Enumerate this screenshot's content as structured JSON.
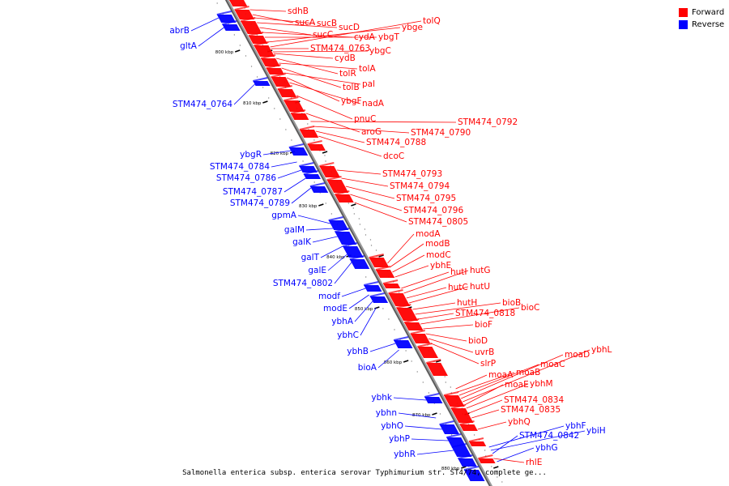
{
  "caption": "Salmonella enterica subsp. enterica serovar Typhimurium str. ST4/74, complete ge...",
  "colors": {
    "forward": "#ff0000",
    "reverse": "#0000ff"
  },
  "legend": [
    {
      "label": "Forward",
      "color": "#ff0000"
    },
    {
      "label": "Reverse",
      "color": "#0000ff"
    }
  ],
  "ticks": [
    "800 kbp",
    "810 kbp",
    "820 kbp",
    "830 kbp",
    "840 kbp",
    "850 kbp",
    "860 kbp",
    "870 kbp",
    "880 kbp"
  ],
  "forward_genes": [
    "sdhB",
    "sucA",
    "sucB",
    "sucD",
    "sucC",
    "cydA",
    "ybgT",
    "ybge",
    "tolQ",
    "STM474_0763",
    "ybgC",
    "cydB",
    "tolR",
    "tolA",
    "tolB",
    "pal",
    "ybgF",
    "nadA",
    "pnuC",
    "aroG",
    "STM474_0792",
    "STM474_0790",
    "STM474_0788",
    "dcoC",
    "STM474_0793",
    "STM474_0794",
    "STM474_0795",
    "STM474_0796",
    "STM474_0805",
    "modA",
    "modB",
    "modC",
    "ybhE",
    "hutI",
    "hutG",
    "hutC",
    "hutU",
    "hutH",
    "bioB",
    "STM474_0818",
    "bioC",
    "bioF",
    "bioD",
    "uvrB",
    "slrP",
    "moaA",
    "moaB",
    "moaC",
    "moaD",
    "ybhL",
    "moaE",
    "ybhM",
    "STM474_0834",
    "STM474_0835",
    "ybhQ",
    "rhlE"
  ],
  "reverse_genes": [
    "abrB",
    "gltA",
    "STM474_0764",
    "ybgR",
    "STM474_0784",
    "STM474_0786",
    "STM474_0787",
    "STM474_0789",
    "gpmA",
    "galM",
    "galK",
    "galT",
    "galE",
    "STM474_0802",
    "modf",
    "modE",
    "ybhA",
    "ybhC",
    "ybhB",
    "bioA",
    "ybhk",
    "ybhn",
    "ybhO",
    "ybhP",
    "ybhR",
    "ybhF",
    "ybiH",
    "STM474_0842",
    "ybhG"
  ]
}
